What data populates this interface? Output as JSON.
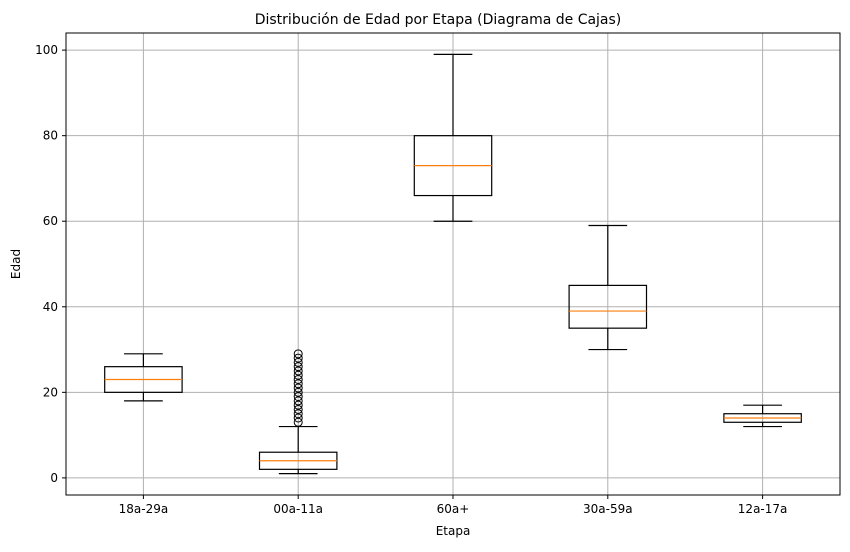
{
  "chart_data": {
    "type": "box",
    "title": "Distribución de Edad por Etapa (Diagrama de Cajas)",
    "xlabel": "Etapa",
    "ylabel": "Edad",
    "ylim": [
      -4,
      104
    ],
    "yticks": [
      0,
      20,
      40,
      60,
      80,
      100
    ],
    "grid": true,
    "colors": {
      "box": "#000000",
      "median": "#ff7f0e",
      "grid": "#b0b0b0"
    },
    "categories": [
      "18a-29a",
      "00a-11a",
      "60a+",
      "30a-59a",
      "12a-17a"
    ],
    "boxes": [
      {
        "category": "18a-29a",
        "whisker_low": 18,
        "q1": 20,
        "median": 23,
        "q3": 26,
        "whisker_high": 29,
        "outliers": []
      },
      {
        "category": "00a-11a",
        "whisker_low": 1,
        "q1": 2,
        "median": 4,
        "q3": 6,
        "whisker_high": 12,
        "outliers": [
          13,
          14,
          15,
          16,
          17,
          18,
          19,
          20,
          21,
          22,
          23,
          24,
          25,
          26,
          27,
          28,
          29
        ]
      },
      {
        "category": "60a+",
        "whisker_low": 60,
        "q1": 66,
        "median": 73,
        "q3": 80,
        "whisker_high": 99,
        "outliers": []
      },
      {
        "category": "30a-59a",
        "whisker_low": 30,
        "q1": 35,
        "median": 39,
        "q3": 45,
        "whisker_high": 59,
        "outliers": []
      },
      {
        "category": "12a-17a",
        "whisker_low": 12,
        "q1": 13,
        "median": 14,
        "q3": 15,
        "whisker_high": 17,
        "outliers": []
      }
    ]
  }
}
